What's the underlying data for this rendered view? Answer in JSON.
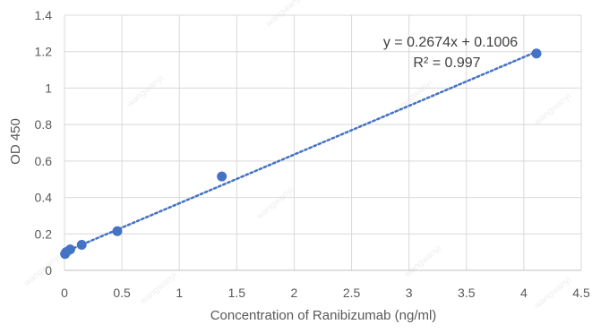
{
  "chart_data": {
    "type": "scatter",
    "title": "",
    "xlabel": "Concentration of Ranibizumab (ng/ml)",
    "ylabel": "OD 450",
    "xlim": [
      0,
      4.5
    ],
    "ylim": [
      0,
      1.4
    ],
    "x_ticks": [
      "0",
      "0.5",
      "1",
      "1.5",
      "2",
      "2.5",
      "3",
      "3.5",
      "4",
      "4.5"
    ],
    "y_ticks": [
      "0",
      "0.2",
      "0.4",
      "0.6",
      "0.8",
      "1",
      "1.2",
      "1.4"
    ],
    "x_tick_values": [
      0,
      0.5,
      1,
      1.5,
      2,
      2.5,
      3,
      3.5,
      4,
      4.5
    ],
    "y_tick_values": [
      0,
      0.2,
      0.4,
      0.6,
      0.8,
      1,
      1.2,
      1.4
    ],
    "grid": true,
    "legend": false,
    "series": [
      {
        "x": [
          0.005,
          0.015,
          0.05,
          0.15,
          0.46,
          1.37,
          4.11
        ],
        "y": [
          0.09,
          0.1,
          0.115,
          0.14,
          0.215,
          0.515,
          1.19
        ],
        "color": "#4472c4"
      }
    ],
    "trendline": {
      "type": "linear",
      "slope": 0.2674,
      "intercept": 0.1006,
      "x_range": [
        0,
        4.11
      ],
      "style": "dotted",
      "color": "#4472c4",
      "equation": "y = 0.2674x + 0.1006",
      "r_squared": "R² = 0.997"
    },
    "watermark": "wangwanyi"
  }
}
